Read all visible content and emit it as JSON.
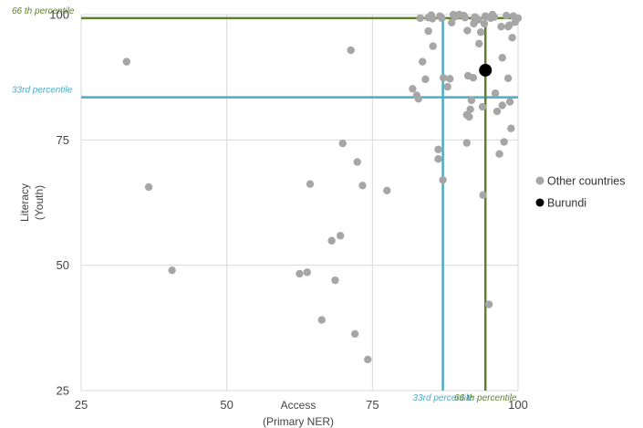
{
  "chart_data": {
    "type": "scatter",
    "xlabel": [
      "Access",
      "(Primary NER)"
    ],
    "ylabel": [
      "Literacy",
      "(Youth)"
    ],
    "xlim": [
      25,
      100
    ],
    "ylim": [
      25,
      100
    ],
    "xticks": [
      25,
      50,
      75,
      100
    ],
    "yticks": [
      25,
      50,
      75,
      100
    ],
    "grid": "vertical and horizontal at ticks",
    "legend_position": "right",
    "colors": {
      "other": "#a6a6a6",
      "burundi": "#000000",
      "percentile_33": "#4bacc6",
      "percentile_66": "#5f7f2f",
      "grid": "#d9d9d9"
    },
    "reference_lines": [
      {
        "axis": "y",
        "value": 83.5,
        "label": "33rd percentile",
        "color": "#4bacc6"
      },
      {
        "axis": "y",
        "value": 99.3,
        "label": "66 th percentile",
        "color": "#5f7f2f"
      },
      {
        "axis": "x",
        "value": 87.1,
        "label": "33rd percentile",
        "color": "#4bacc6"
      },
      {
        "axis": "x",
        "value": 94.4,
        "label": "66 th percentile",
        "color": "#5f7f2f"
      }
    ],
    "series": [
      {
        "name": "Other countries",
        "color": "#a6a6a6",
        "points": [
          [
            32.8,
            90.6
          ],
          [
            36.6,
            65.6
          ],
          [
            40.6,
            49.0
          ],
          [
            62.5,
            48.3
          ],
          [
            63.8,
            48.6
          ],
          [
            64.3,
            66.2
          ],
          [
            66.3,
            39.1
          ],
          [
            68.0,
            54.9
          ],
          [
            68.6,
            47.0
          ],
          [
            69.5,
            55.9
          ],
          [
            69.9,
            74.3
          ],
          [
            71.3,
            92.9
          ],
          [
            72.0,
            36.3
          ],
          [
            72.4,
            70.6
          ],
          [
            73.3,
            65.9
          ],
          [
            74.2,
            31.2
          ],
          [
            77.5,
            64.9
          ],
          [
            81.9,
            85.2
          ],
          [
            82.6,
            83.9
          ],
          [
            82.9,
            83.2
          ],
          [
            83.2,
            99.3
          ],
          [
            83.6,
            90.6
          ],
          [
            84.1,
            87.1
          ],
          [
            84.6,
            99.4
          ],
          [
            84.6,
            96.7
          ],
          [
            85.1,
            99.9
          ],
          [
            85.3,
            99.2
          ],
          [
            85.4,
            93.7
          ],
          [
            86.3,
            73.1
          ],
          [
            86.3,
            71.2
          ],
          [
            86.6,
            99.7
          ],
          [
            86.9,
            99.3
          ],
          [
            87.1,
            67.0
          ],
          [
            87.2,
            87.4
          ],
          [
            87.9,
            85.6
          ],
          [
            88.3,
            87.2
          ],
          [
            88.6,
            98.4
          ],
          [
            88.9,
            100.0
          ],
          [
            89.2,
            99.6
          ],
          [
            89.9,
            100.0
          ],
          [
            90.7,
            99.8
          ],
          [
            90.9,
            99.4
          ],
          [
            91.3,
            96.8
          ],
          [
            91.2,
            80.0
          ],
          [
            91.2,
            74.4
          ],
          [
            91.4,
            87.8
          ],
          [
            91.6,
            79.6
          ],
          [
            91.8,
            81.1
          ],
          [
            92.0,
            82.9
          ],
          [
            92.3,
            87.4
          ],
          [
            92.4,
            98.2
          ],
          [
            92.5,
            99.3
          ],
          [
            92.6,
            99.5
          ],
          [
            93.2,
            99.0
          ],
          [
            93.3,
            94.2
          ],
          [
            93.6,
            96.5
          ],
          [
            93.9,
            81.6
          ],
          [
            94.0,
            64.0
          ],
          [
            94.2,
            98.2
          ],
          [
            94.4,
            99.7
          ],
          [
            95.0,
            42.2
          ],
          [
            95.3,
            99.3
          ],
          [
            95.6,
            100.0
          ],
          [
            95.9,
            99.5
          ],
          [
            96.1,
            84.3
          ],
          [
            96.4,
            80.7
          ],
          [
            96.8,
            72.2
          ],
          [
            97.1,
            97.6
          ],
          [
            97.3,
            81.9
          ],
          [
            97.3,
            91.4
          ],
          [
            97.6,
            74.6
          ],
          [
            98.0,
            99.8
          ],
          [
            98.3,
            97.6
          ],
          [
            98.3,
            87.3
          ],
          [
            98.5,
            97.9
          ],
          [
            98.6,
            82.6
          ],
          [
            98.8,
            77.3
          ],
          [
            99.0,
            95.4
          ],
          [
            99.2,
            99.7
          ],
          [
            99.5,
            98.5
          ],
          [
            100.0,
            99.3
          ]
        ]
      },
      {
        "name": "Burundi",
        "color": "#000000",
        "points": [
          [
            94.4,
            88.9
          ]
        ]
      }
    ]
  }
}
